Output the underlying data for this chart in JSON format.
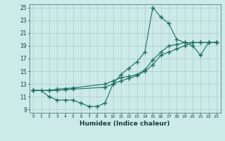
{
  "xlabel": "Humidex (Indice chaleur)",
  "ylabel": "",
  "bg_color": "#cceae8",
  "grid_color": "#b0d0ce",
  "line_color": "#1a6e60",
  "xlim": [
    -0.5,
    23.5
  ],
  "ylim": [
    8.5,
    25.5
  ],
  "xticks": [
    0,
    1,
    2,
    3,
    4,
    5,
    6,
    7,
    8,
    9,
    10,
    11,
    12,
    13,
    14,
    15,
    16,
    17,
    18,
    19,
    20,
    21,
    22,
    23
  ],
  "yticks": [
    9,
    11,
    13,
    15,
    17,
    19,
    21,
    23,
    25
  ],
  "line1_x": [
    0,
    1,
    2,
    3,
    4,
    5,
    6,
    7,
    8,
    9,
    10,
    11,
    12,
    13,
    14,
    15,
    16,
    17,
    18,
    19,
    20,
    21,
    22,
    23
  ],
  "line1_y": [
    12.0,
    12.0,
    11.0,
    10.5,
    10.5,
    10.5,
    10.0,
    9.5,
    9.5,
    10.0,
    13.0,
    14.5,
    15.5,
    16.5,
    18.0,
    25.0,
    23.5,
    22.5,
    20.0,
    19.5,
    19.0,
    17.5,
    19.5,
    19.5
  ],
  "line2_x": [
    0,
    2,
    3,
    4,
    5,
    9,
    10,
    11,
    12,
    13,
    14,
    15,
    16,
    17,
    18,
    19,
    20,
    21,
    22,
    23
  ],
  "line2_y": [
    12.0,
    12.0,
    12.2,
    12.3,
    12.4,
    13.0,
    13.5,
    14.0,
    14.2,
    14.5,
    15.2,
    16.8,
    18.0,
    19.0,
    19.2,
    19.5,
    19.5,
    19.5,
    19.5,
    19.5
  ],
  "line3_x": [
    0,
    2,
    3,
    4,
    5,
    9,
    10,
    11,
    12,
    13,
    14,
    15,
    16,
    17,
    18,
    19,
    20,
    21,
    22,
    23
  ],
  "line3_y": [
    12.0,
    12.0,
    12.0,
    12.1,
    12.2,
    12.5,
    13.0,
    13.5,
    13.9,
    14.3,
    15.0,
    16.0,
    17.5,
    18.0,
    18.5,
    19.0,
    19.5,
    19.5,
    19.5,
    19.5
  ]
}
